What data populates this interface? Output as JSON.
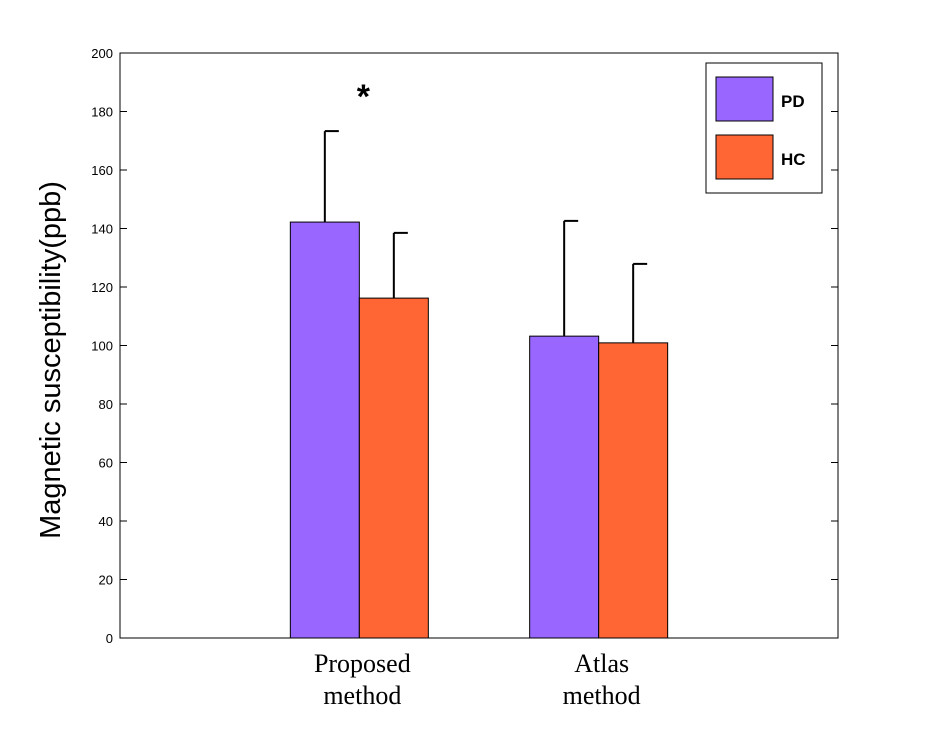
{
  "chart_data": {
    "type": "bar",
    "title": "",
    "xlabel": "",
    "ylabel": "Magnetic susceptibility(ppb)",
    "ylim": [
      0,
      200
    ],
    "yticks": [
      0,
      20,
      40,
      60,
      80,
      100,
      120,
      140,
      160,
      180,
      200
    ],
    "categories": [
      [
        "Proposed",
        "method"
      ],
      [
        "Atlas",
        "method"
      ]
    ],
    "series": [
      {
        "name": "PD",
        "color": "#9966FF",
        "values": [
          142.2,
          103.2
        ],
        "errors": [
          31.1,
          39.4
        ]
      },
      {
        "name": "HC",
        "color": "#FF6633",
        "values": [
          116.2,
          100.9
        ],
        "errors": [
          22.3,
          27.0
        ]
      }
    ],
    "annotations": [
      {
        "text": "*",
        "category": 0
      }
    ],
    "legend": "top-right",
    "grid": false
  }
}
